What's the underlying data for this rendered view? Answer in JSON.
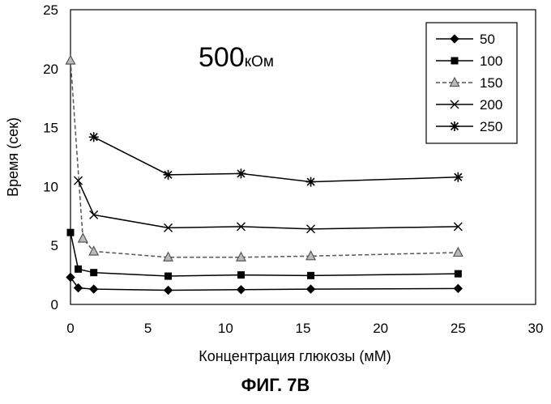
{
  "figure": {
    "caption": "ФИГ. 7В"
  },
  "chart_data": {
    "type": "line",
    "annotation": {
      "value": "500",
      "unit": "кОм"
    },
    "xlabel": "Концентрация глюкозы (мМ)",
    "ylabel": "Время (сек)",
    "xlim": [
      0,
      30
    ],
    "ylim": [
      0,
      25
    ],
    "x_ticks": [
      0,
      5,
      10,
      15,
      20,
      25,
      30
    ],
    "y_ticks": [
      0,
      5,
      10,
      15,
      20,
      25
    ],
    "grid": false,
    "legend_position": "top-right",
    "series": [
      {
        "name": "50",
        "marker": "diamond",
        "color": "#000000",
        "dash": "none",
        "x": [
          0,
          0.5,
          1.5,
          6.3,
          11,
          15.5,
          25
        ],
        "y": [
          2.3,
          1.4,
          1.3,
          1.2,
          1.25,
          1.3,
          1.35
        ]
      },
      {
        "name": "100",
        "marker": "square",
        "color": "#000000",
        "dash": "none",
        "x": [
          0,
          0.5,
          1.5,
          6.3,
          11,
          15.5,
          25
        ],
        "y": [
          6.1,
          3.0,
          2.7,
          2.4,
          2.5,
          2.45,
          2.6
        ]
      },
      {
        "name": "150",
        "marker": "triangle",
        "color": "#555555",
        "dash": "5,3",
        "x": [
          0,
          0.8,
          1.5,
          6.3,
          11,
          15.5,
          25
        ],
        "y": [
          20.7,
          5.6,
          4.5,
          4.0,
          4.0,
          4.1,
          4.4
        ]
      },
      {
        "name": "200",
        "marker": "x",
        "color": "#000000",
        "dash": "none",
        "x": [
          0.5,
          1.5,
          6.3,
          11,
          15.5,
          25
        ],
        "y": [
          10.5,
          7.6,
          6.5,
          6.6,
          6.4,
          6.6
        ]
      },
      {
        "name": "250",
        "marker": "star",
        "color": "#000000",
        "dash": "none",
        "x": [
          1.5,
          6.3,
          11,
          15.5,
          25
        ],
        "y": [
          14.2,
          11.0,
          11.1,
          10.4,
          10.8
        ]
      }
    ]
  }
}
